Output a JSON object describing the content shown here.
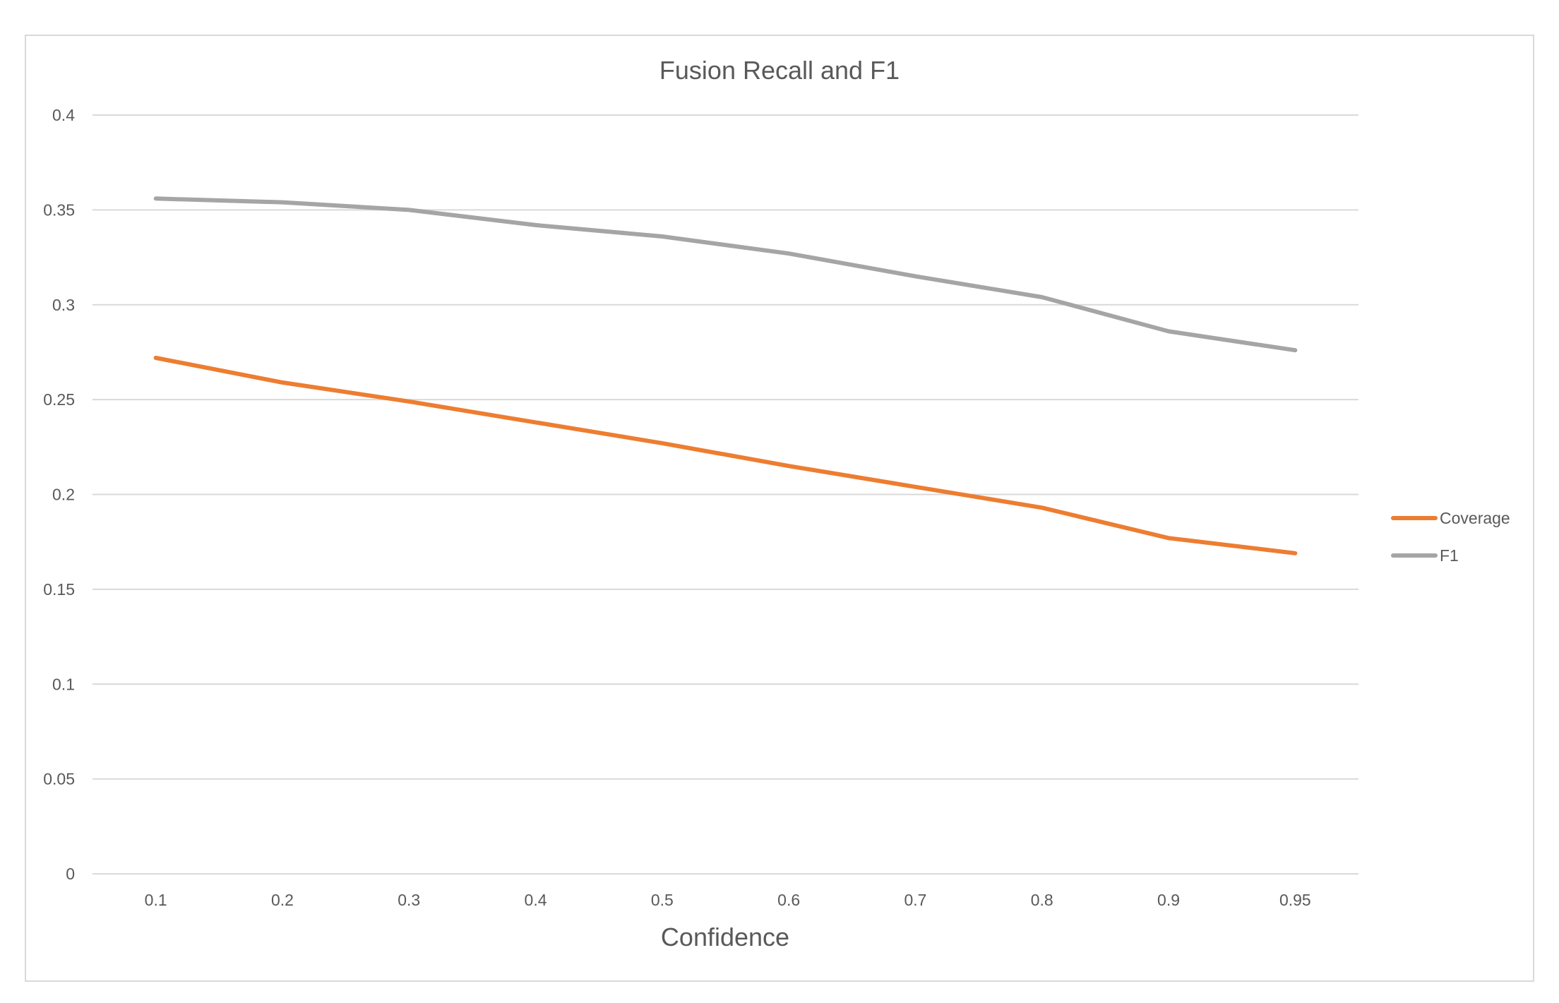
{
  "chart_data": {
    "type": "line",
    "title": "Fusion Recall and F1",
    "xlabel": "Confidence",
    "ylabel": "",
    "categories": [
      "0.1",
      "0.2",
      "0.3",
      "0.4",
      "0.5",
      "0.6",
      "0.7",
      "0.8",
      "0.9",
      "0.95"
    ],
    "ylim": [
      0,
      0.4
    ],
    "yticks": [
      "0",
      "0.05",
      "0.1",
      "0.15",
      "0.2",
      "0.25",
      "0.3",
      "0.35",
      "0.4"
    ],
    "grid": true,
    "legend_position": "right",
    "series": [
      {
        "name": "Coverage",
        "color": "#ED7D31",
        "values": [
          0.272,
          0.259,
          0.249,
          0.238,
          0.227,
          0.215,
          0.204,
          0.193,
          0.177,
          0.169
        ]
      },
      {
        "name": "F1",
        "color": "#A5A5A5",
        "values": [
          0.356,
          0.354,
          0.35,
          0.342,
          0.336,
          0.327,
          0.315,
          0.304,
          0.286,
          0.276
        ]
      }
    ]
  }
}
